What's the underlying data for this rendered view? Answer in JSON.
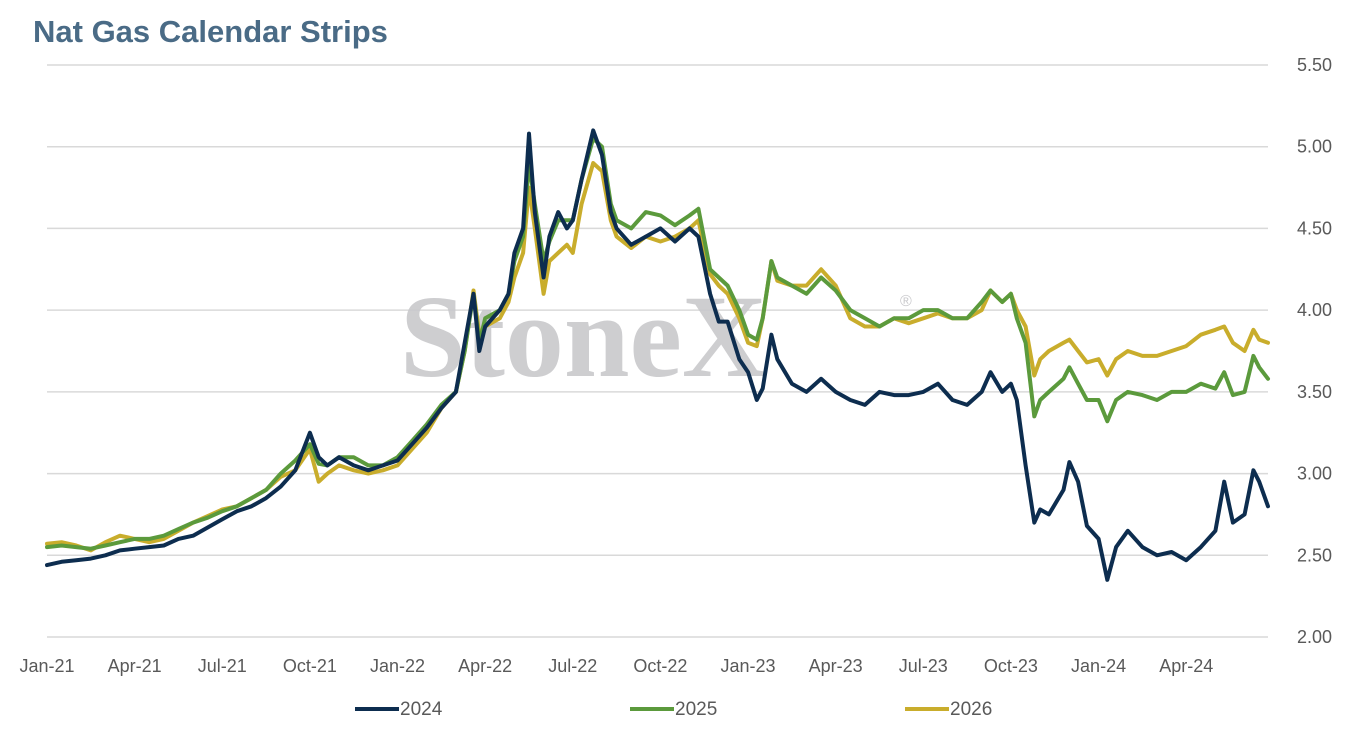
{
  "chart_data": {
    "type": "line",
    "title": "Nat Gas Calendar Strips",
    "watermark": "StoneX",
    "watermark_mark": "®",
    "xlabel": "",
    "ylabel": "",
    "ylim": [
      2.0,
      5.5
    ],
    "yticks": [
      2.0,
      2.5,
      3.0,
      3.5,
      4.0,
      4.5,
      5.0,
      5.5
    ],
    "ytick_labels": [
      "2.00",
      "2.50",
      "3.00",
      "3.50",
      "4.00",
      "4.50",
      "5.00",
      "5.50"
    ],
    "y_axis_side": "right",
    "xticks": [
      "Jan-21",
      "Apr-21",
      "Jul-21",
      "Oct-21",
      "Jan-22",
      "Apr-22",
      "Jul-22",
      "Oct-22",
      "Jan-23",
      "Apr-23",
      "Jul-23",
      "Oct-23",
      "Jan-24",
      "Apr-24"
    ],
    "xlim": [
      "Jan-21",
      "Jun-24"
    ],
    "grid": "horizontal",
    "legend": "bottom-center",
    "series": [
      {
        "name": "2024",
        "color": "#0d2d4f",
        "points": [
          [
            0,
            2.44
          ],
          [
            0.5,
            2.46
          ],
          [
            1,
            2.47
          ],
          [
            1.5,
            2.48
          ],
          [
            2,
            2.5
          ],
          [
            2.5,
            2.53
          ],
          [
            3,
            2.54
          ],
          [
            3.5,
            2.55
          ],
          [
            4,
            2.56
          ],
          [
            4.5,
            2.6
          ],
          [
            5,
            2.62
          ],
          [
            5.5,
            2.67
          ],
          [
            6,
            2.72
          ],
          [
            6.5,
            2.77
          ],
          [
            7,
            2.8
          ],
          [
            7.5,
            2.85
          ],
          [
            8,
            2.92
          ],
          [
            8.5,
            3.02
          ],
          [
            9,
            3.25
          ],
          [
            9.3,
            3.1
          ],
          [
            9.6,
            3.05
          ],
          [
            10,
            3.1
          ],
          [
            10.5,
            3.05
          ],
          [
            11,
            3.02
          ],
          [
            11.5,
            3.05
          ],
          [
            12,
            3.08
          ],
          [
            12.5,
            3.18
          ],
          [
            13,
            3.28
          ],
          [
            13.5,
            3.4
          ],
          [
            14,
            3.5
          ],
          [
            14.3,
            3.8
          ],
          [
            14.6,
            4.1
          ],
          [
            14.8,
            3.75
          ],
          [
            15,
            3.9
          ],
          [
            15.5,
            4.0
          ],
          [
            15.8,
            4.1
          ],
          [
            16,
            4.35
          ],
          [
            16.3,
            4.5
          ],
          [
            16.5,
            5.08
          ],
          [
            16.7,
            4.6
          ],
          [
            17,
            4.2
          ],
          [
            17.2,
            4.45
          ],
          [
            17.5,
            4.6
          ],
          [
            17.8,
            4.5
          ],
          [
            18,
            4.55
          ],
          [
            18.3,
            4.8
          ],
          [
            18.7,
            5.1
          ],
          [
            19,
            4.95
          ],
          [
            19.3,
            4.6
          ],
          [
            19.5,
            4.5
          ],
          [
            20,
            4.4
          ],
          [
            20.5,
            4.45
          ],
          [
            21,
            4.5
          ],
          [
            21.5,
            4.42
          ],
          [
            22,
            4.5
          ],
          [
            22.3,
            4.45
          ],
          [
            22.7,
            4.1
          ],
          [
            23,
            3.93
          ],
          [
            23.3,
            3.93
          ],
          [
            23.7,
            3.7
          ],
          [
            24,
            3.62
          ],
          [
            24.3,
            3.45
          ],
          [
            24.5,
            3.52
          ],
          [
            24.8,
            3.85
          ],
          [
            25,
            3.7
          ],
          [
            25.5,
            3.55
          ],
          [
            26,
            3.5
          ],
          [
            26.5,
            3.58
          ],
          [
            27,
            3.5
          ],
          [
            27.5,
            3.45
          ],
          [
            28,
            3.42
          ],
          [
            28.5,
            3.5
          ],
          [
            29,
            3.48
          ],
          [
            29.5,
            3.48
          ],
          [
            30,
            3.5
          ],
          [
            30.5,
            3.55
          ],
          [
            31,
            3.45
          ],
          [
            31.5,
            3.42
          ],
          [
            32,
            3.5
          ],
          [
            32.3,
            3.62
          ],
          [
            32.7,
            3.5
          ],
          [
            33,
            3.55
          ],
          [
            33.2,
            3.45
          ],
          [
            33.5,
            3.05
          ],
          [
            33.8,
            2.7
          ],
          [
            34,
            2.78
          ],
          [
            34.3,
            2.75
          ],
          [
            34.8,
            2.9
          ],
          [
            35,
            3.07
          ],
          [
            35.3,
            2.95
          ],
          [
            35.6,
            2.68
          ],
          [
            36,
            2.6
          ],
          [
            36.3,
            2.35
          ],
          [
            36.6,
            2.55
          ],
          [
            37,
            2.65
          ],
          [
            37.5,
            2.55
          ],
          [
            38,
            2.5
          ],
          [
            38.5,
            2.52
          ],
          [
            39,
            2.47
          ],
          [
            39.5,
            2.55
          ],
          [
            40,
            2.65
          ],
          [
            40.3,
            2.95
          ],
          [
            40.6,
            2.7
          ],
          [
            41,
            2.75
          ],
          [
            41.3,
            3.02
          ],
          [
            41.5,
            2.95
          ],
          [
            41.8,
            2.8
          ]
        ]
      },
      {
        "name": "2025",
        "color": "#5b9a3c",
        "points": [
          [
            0,
            2.55
          ],
          [
            0.5,
            2.56
          ],
          [
            1,
            2.55
          ],
          [
            1.5,
            2.54
          ],
          [
            2,
            2.56
          ],
          [
            2.5,
            2.58
          ],
          [
            3,
            2.6
          ],
          [
            3.5,
            2.6
          ],
          [
            4,
            2.62
          ],
          [
            4.5,
            2.66
          ],
          [
            5,
            2.7
          ],
          [
            5.5,
            2.73
          ],
          [
            6,
            2.77
          ],
          [
            6.5,
            2.8
          ],
          [
            7,
            2.85
          ],
          [
            7.5,
            2.9
          ],
          [
            8,
            3.0
          ],
          [
            8.5,
            3.08
          ],
          [
            9,
            3.18
          ],
          [
            9.3,
            3.06
          ],
          [
            9.6,
            3.05
          ],
          [
            10,
            3.1
          ],
          [
            10.5,
            3.1
          ],
          [
            11,
            3.05
          ],
          [
            11.5,
            3.05
          ],
          [
            12,
            3.1
          ],
          [
            12.5,
            3.2
          ],
          [
            13,
            3.3
          ],
          [
            13.5,
            3.42
          ],
          [
            14,
            3.5
          ],
          [
            14.3,
            3.75
          ],
          [
            14.6,
            4.1
          ],
          [
            14.8,
            3.8
          ],
          [
            15,
            3.95
          ],
          [
            15.5,
            4.0
          ],
          [
            15.8,
            4.1
          ],
          [
            16,
            4.3
          ],
          [
            16.3,
            4.45
          ],
          [
            16.5,
            4.9
          ],
          [
            16.7,
            4.65
          ],
          [
            17,
            4.3
          ],
          [
            17.2,
            4.42
          ],
          [
            17.5,
            4.55
          ],
          [
            17.8,
            4.55
          ],
          [
            18,
            4.55
          ],
          [
            18.3,
            4.8
          ],
          [
            18.7,
            5.05
          ],
          [
            19,
            5.0
          ],
          [
            19.3,
            4.65
          ],
          [
            19.5,
            4.55
          ],
          [
            20,
            4.5
          ],
          [
            20.5,
            4.6
          ],
          [
            21,
            4.58
          ],
          [
            21.5,
            4.52
          ],
          [
            22,
            4.58
          ],
          [
            22.3,
            4.62
          ],
          [
            22.7,
            4.25
          ],
          [
            23,
            4.2
          ],
          [
            23.3,
            4.15
          ],
          [
            23.7,
            4.0
          ],
          [
            24,
            3.85
          ],
          [
            24.3,
            3.82
          ],
          [
            24.5,
            3.95
          ],
          [
            24.8,
            4.3
          ],
          [
            25,
            4.2
          ],
          [
            25.5,
            4.15
          ],
          [
            26,
            4.1
          ],
          [
            26.5,
            4.2
          ],
          [
            27,
            4.12
          ],
          [
            27.5,
            4.0
          ],
          [
            28,
            3.95
          ],
          [
            28.5,
            3.9
          ],
          [
            29,
            3.95
          ],
          [
            29.5,
            3.95
          ],
          [
            30,
            4.0
          ],
          [
            30.5,
            4.0
          ],
          [
            31,
            3.95
          ],
          [
            31.5,
            3.95
          ],
          [
            32,
            4.05
          ],
          [
            32.3,
            4.12
          ],
          [
            32.7,
            4.05
          ],
          [
            33,
            4.1
          ],
          [
            33.2,
            3.95
          ],
          [
            33.5,
            3.8
          ],
          [
            33.8,
            3.35
          ],
          [
            34,
            3.45
          ],
          [
            34.3,
            3.5
          ],
          [
            34.8,
            3.58
          ],
          [
            35,
            3.65
          ],
          [
            35.3,
            3.55
          ],
          [
            35.6,
            3.45
          ],
          [
            36,
            3.45
          ],
          [
            36.3,
            3.32
          ],
          [
            36.6,
            3.45
          ],
          [
            37,
            3.5
          ],
          [
            37.5,
            3.48
          ],
          [
            38,
            3.45
          ],
          [
            38.5,
            3.5
          ],
          [
            39,
            3.5
          ],
          [
            39.5,
            3.55
          ],
          [
            40,
            3.52
          ],
          [
            40.3,
            3.62
          ],
          [
            40.6,
            3.48
          ],
          [
            41,
            3.5
          ],
          [
            41.3,
            3.72
          ],
          [
            41.5,
            3.65
          ],
          [
            41.8,
            3.58
          ]
        ]
      },
      {
        "name": "2026",
        "color": "#c9ad2c",
        "points": [
          [
            0,
            2.57
          ],
          [
            0.5,
            2.58
          ],
          [
            1,
            2.56
          ],
          [
            1.5,
            2.53
          ],
          [
            2,
            2.58
          ],
          [
            2.5,
            2.62
          ],
          [
            3,
            2.6
          ],
          [
            3.5,
            2.58
          ],
          [
            4,
            2.6
          ],
          [
            4.5,
            2.65
          ],
          [
            5,
            2.7
          ],
          [
            5.5,
            2.74
          ],
          [
            6,
            2.78
          ],
          [
            6.5,
            2.8
          ],
          [
            7,
            2.85
          ],
          [
            7.5,
            2.9
          ],
          [
            8,
            2.98
          ],
          [
            8.5,
            3.02
          ],
          [
            9,
            3.15
          ],
          [
            9.3,
            2.95
          ],
          [
            9.6,
            3.0
          ],
          [
            10,
            3.05
          ],
          [
            10.5,
            3.02
          ],
          [
            11,
            3.0
          ],
          [
            11.5,
            3.02
          ],
          [
            12,
            3.05
          ],
          [
            12.5,
            3.15
          ],
          [
            13,
            3.25
          ],
          [
            13.5,
            3.4
          ],
          [
            14,
            3.5
          ],
          [
            14.3,
            3.75
          ],
          [
            14.6,
            4.12
          ],
          [
            14.8,
            3.85
          ],
          [
            15,
            3.9
          ],
          [
            15.5,
            3.95
          ],
          [
            15.8,
            4.05
          ],
          [
            16,
            4.2
          ],
          [
            16.3,
            4.35
          ],
          [
            16.5,
            4.75
          ],
          [
            16.7,
            4.5
          ],
          [
            17,
            4.1
          ],
          [
            17.2,
            4.3
          ],
          [
            17.5,
            4.35
          ],
          [
            17.8,
            4.4
          ],
          [
            18,
            4.35
          ],
          [
            18.3,
            4.65
          ],
          [
            18.7,
            4.9
          ],
          [
            19,
            4.85
          ],
          [
            19.3,
            4.55
          ],
          [
            19.5,
            4.45
          ],
          [
            20,
            4.38
          ],
          [
            20.5,
            4.45
          ],
          [
            21,
            4.42
          ],
          [
            21.5,
            4.45
          ],
          [
            22,
            4.5
          ],
          [
            22.3,
            4.55
          ],
          [
            22.7,
            4.22
          ],
          [
            23,
            4.15
          ],
          [
            23.3,
            4.1
          ],
          [
            23.7,
            3.95
          ],
          [
            24,
            3.8
          ],
          [
            24.3,
            3.78
          ],
          [
            24.5,
            3.95
          ],
          [
            24.8,
            4.3
          ],
          [
            25,
            4.18
          ],
          [
            25.5,
            4.15
          ],
          [
            26,
            4.15
          ],
          [
            26.5,
            4.25
          ],
          [
            27,
            4.15
          ],
          [
            27.5,
            3.95
          ],
          [
            28,
            3.9
          ],
          [
            28.5,
            3.9
          ],
          [
            29,
            3.95
          ],
          [
            29.5,
            3.92
          ],
          [
            30,
            3.95
          ],
          [
            30.5,
            3.98
          ],
          [
            31,
            3.95
          ],
          [
            31.5,
            3.95
          ],
          [
            32,
            4.0
          ],
          [
            32.3,
            4.12
          ],
          [
            32.7,
            4.05
          ],
          [
            33,
            4.1
          ],
          [
            33.2,
            4.0
          ],
          [
            33.5,
            3.9
          ],
          [
            33.8,
            3.6
          ],
          [
            34,
            3.7
          ],
          [
            34.3,
            3.75
          ],
          [
            34.8,
            3.8
          ],
          [
            35,
            3.82
          ],
          [
            35.3,
            3.75
          ],
          [
            35.6,
            3.68
          ],
          [
            36,
            3.7
          ],
          [
            36.3,
            3.6
          ],
          [
            36.6,
            3.7
          ],
          [
            37,
            3.75
          ],
          [
            37.5,
            3.72
          ],
          [
            38,
            3.72
          ],
          [
            38.5,
            3.75
          ],
          [
            39,
            3.78
          ],
          [
            39.5,
            3.85
          ],
          [
            40,
            3.88
          ],
          [
            40.3,
            3.9
          ],
          [
            40.6,
            3.8
          ],
          [
            41,
            3.75
          ],
          [
            41.3,
            3.88
          ],
          [
            41.5,
            3.82
          ],
          [
            41.8,
            3.8
          ]
        ]
      }
    ]
  }
}
